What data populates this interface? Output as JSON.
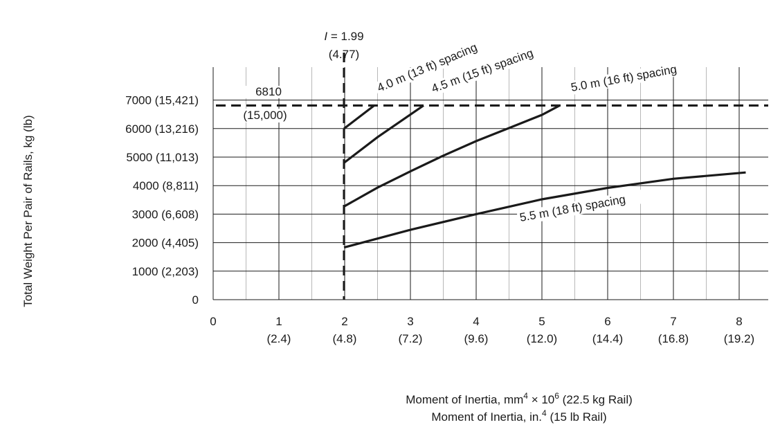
{
  "chart_data": {
    "type": "line",
    "ylabel": "Total Weight Per Pair of Rails, kg (lb)",
    "xlabel_line1": "Moment of Inertia, mm",
    "xlabel_line1_sup1": "4",
    "xlabel_line1_mid": " × 10",
    "xlabel_line1_sup2": "6",
    "xlabel_line1_end": " (22.5 kg Rail)",
    "xlabel_line2": "Moment of Inertia, in.",
    "xlabel_line2_sup": "4",
    "xlabel_line2_end": " (15 lb Rail)",
    "xlim": [
      0,
      8.4
    ],
    "ylim": [
      0,
      8150
    ],
    "x_ticks": [
      {
        "value": 0,
        "label": "0",
        "sub": ""
      },
      {
        "value": 1,
        "label": "1",
        "sub": "(2.4)"
      },
      {
        "value": 2,
        "label": "2",
        "sub": "(4.8)"
      },
      {
        "value": 3,
        "label": "3",
        "sub": "(7.2)"
      },
      {
        "value": 4,
        "label": "4",
        "sub": "(9.6)"
      },
      {
        "value": 5,
        "label": "5",
        "sub": "(12.0)"
      },
      {
        "value": 6,
        "label": "6",
        "sub": "(14.4)"
      },
      {
        "value": 7,
        "label": "7",
        "sub": "(16.8)"
      },
      {
        "value": 8,
        "label": "8",
        "sub": "(19.2)"
      }
    ],
    "y_ticks": [
      {
        "value": 0,
        "label": "0"
      },
      {
        "value": 1000,
        "label": "1000 (2,203)"
      },
      {
        "value": 2000,
        "label": "2000 (4,405)"
      },
      {
        "value": 3000,
        "label": "3000 (6,608)"
      },
      {
        "value": 4000,
        "label": "4000 (8,811)"
      },
      {
        "value": 5000,
        "label": "5000 (11,013)"
      },
      {
        "value": 6000,
        "label": "6000 (13,216)"
      },
      {
        "value": 7000,
        "label": "7000 (15,421)"
      }
    ],
    "grid": true,
    "limit_lines": {
      "vertical": {
        "x": 1.99,
        "label": "I = 1.99",
        "label_sub": "(4.77)"
      },
      "horizontal": {
        "y": 6810,
        "label": "6810",
        "label_sub": "(15,000)"
      }
    },
    "series": [
      {
        "name": "4.0 m (13 ft) spacing",
        "x": [
          1.99,
          2.45
        ],
        "y": [
          6000,
          6810
        ]
      },
      {
        "name": "4.5 m (15 ft) spacing",
        "x": [
          1.99,
          2.5,
          3.2
        ],
        "y": [
          4800,
          5700,
          6810
        ]
      },
      {
        "name": "5.0 m (16 ft) spacing",
        "x": [
          1.99,
          2.5,
          3.0,
          3.5,
          4.0,
          4.5,
          5.0,
          5.27
        ],
        "y": [
          3270,
          3930,
          4500,
          5050,
          5560,
          6020,
          6480,
          6810
        ]
      },
      {
        "name": "5.5 m (18 ft) spacing",
        "x": [
          1.99,
          3.0,
          4.0,
          5.0,
          6.0,
          7.0,
          8.1
        ],
        "y": [
          1830,
          2450,
          3000,
          3520,
          3920,
          4240,
          4460
        ]
      }
    ]
  }
}
